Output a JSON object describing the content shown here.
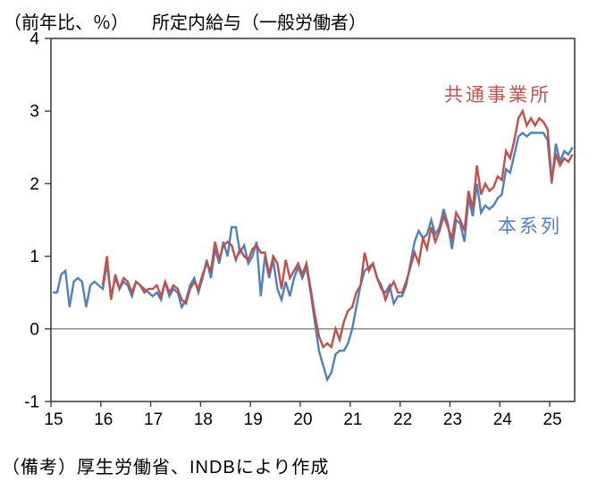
{
  "header": {
    "unit_label": "（前年比、％）",
    "title": "所定内給与（一般労働者）"
  },
  "footer": {
    "note": "（備考）厚生労働省、INDBにより作成"
  },
  "colors": {
    "main_series_blue": "#4f81bd",
    "common_series_red": "#c0504d",
    "zero_line": "#808080",
    "frame": "#404040"
  },
  "chart_data": {
    "type": "line",
    "title": "所定内給与（一般労働者）",
    "unit_label": "（前年比、％）",
    "xlabel": "",
    "ylabel": "前年比、％",
    "xlim": [
      2015.0,
      2025.5
    ],
    "ylim": [
      -1,
      4
    ],
    "y_ticks": [
      -1,
      0,
      1,
      2,
      3,
      4
    ],
    "x_ticks": [
      2015,
      2016,
      2017,
      2018,
      2019,
      2020,
      2021,
      2022,
      2023,
      2024,
      2025
    ],
    "x_tick_labels": [
      "15",
      "16",
      "17",
      "18",
      "19",
      "20",
      "21",
      "22",
      "23",
      "24",
      "25"
    ],
    "grid": false,
    "zero_line": true,
    "legend_position": "inline-annotations",
    "frequency": "monthly",
    "series": [
      {
        "name": "本系列",
        "color": "#4f81bd",
        "start_year": 2015,
        "start_month": 1,
        "values": [
          0.5,
          0.5,
          0.75,
          0.8,
          0.3,
          0.65,
          0.7,
          0.65,
          0.3,
          0.6,
          0.65,
          0.6,
          0.55,
          0.9,
          0.45,
          0.7,
          0.55,
          0.65,
          0.6,
          0.45,
          0.65,
          0.6,
          0.55,
          0.5,
          0.45,
          0.5,
          0.4,
          0.65,
          0.45,
          0.55,
          0.5,
          0.3,
          0.4,
          0.6,
          0.7,
          0.5,
          0.7,
          0.95,
          0.7,
          1.1,
          0.9,
          1.2,
          1.0,
          1.4,
          1.4,
          1.05,
          1.15,
          0.9,
          1.0,
          1.2,
          0.45,
          1.0,
          0.7,
          0.95,
          0.55,
          0.4,
          0.65,
          0.45,
          0.7,
          0.85,
          0.7,
          0.85,
          0.5,
          0.1,
          -0.3,
          -0.5,
          -0.7,
          -0.6,
          -0.35,
          -0.3,
          -0.3,
          -0.2,
          0.0,
          0.3,
          0.6,
          0.8,
          0.85,
          0.9,
          0.7,
          0.55,
          0.5,
          0.6,
          0.35,
          0.45,
          0.45,
          0.6,
          0.9,
          1.2,
          1.35,
          1.25,
          1.3,
          1.5,
          1.3,
          1.4,
          1.65,
          1.45,
          1.1,
          1.5,
          1.45,
          1.2,
          1.8,
          1.55,
          2.0,
          1.6,
          1.7,
          1.65,
          1.7,
          1.8,
          1.85,
          2.2,
          2.15,
          2.4,
          2.65,
          2.7,
          2.65,
          2.7,
          2.7,
          2.7,
          2.7,
          2.6,
          2.0,
          2.55,
          2.3,
          2.45,
          2.4,
          2.5
        ]
      },
      {
        "name": "共通事業所",
        "color": "#c0504d",
        "start_year": 2016,
        "start_month": 1,
        "values": [
          0.6,
          1.0,
          0.4,
          0.75,
          0.55,
          0.7,
          0.65,
          0.5,
          0.65,
          0.6,
          0.5,
          0.55,
          0.55,
          0.6,
          0.45,
          0.65,
          0.5,
          0.6,
          0.55,
          0.4,
          0.35,
          0.55,
          0.65,
          0.55,
          0.75,
          0.9,
          0.8,
          1.2,
          0.95,
          1.15,
          1.2,
          1.15,
          0.95,
          1.1,
          1.0,
          0.95,
          1.1,
          1.15,
          1.05,
          1.05,
          0.75,
          1.0,
          0.9,
          0.55,
          0.95,
          0.7,
          0.8,
          0.9,
          0.75,
          0.9,
          0.55,
          0.2,
          -0.1,
          -0.25,
          -0.2,
          -0.25,
          0.0,
          -0.15,
          0.1,
          0.25,
          0.3,
          0.5,
          0.6,
          1.05,
          0.8,
          0.9,
          0.7,
          0.6,
          0.4,
          0.55,
          0.65,
          0.5,
          0.5,
          0.65,
          0.85,
          1.05,
          0.9,
          1.25,
          1.1,
          1.4,
          1.2,
          1.35,
          1.55,
          1.4,
          1.25,
          1.6,
          1.5,
          1.35,
          1.9,
          1.65,
          2.25,
          1.85,
          2.0,
          1.9,
          1.95,
          2.1,
          2.05,
          2.45,
          2.35,
          2.6,
          2.9,
          3.0,
          2.8,
          2.9,
          2.8,
          2.9,
          2.85,
          2.75,
          2.05,
          2.4,
          2.25,
          2.35,
          2.3,
          2.4
        ]
      }
    ],
    "legend": [
      {
        "label": "共通事業所",
        "color": "#c0504d"
      },
      {
        "label": "本系列",
        "color": "#4f81bd"
      }
    ]
  }
}
